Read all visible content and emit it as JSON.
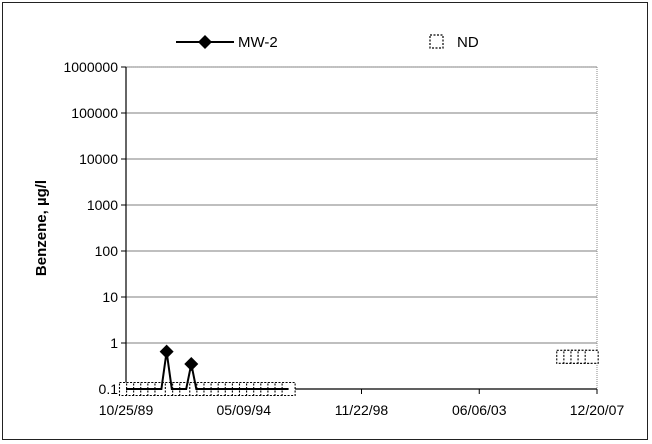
{
  "chart_data": {
    "type": "line",
    "y_scale": "log",
    "ylim": [
      0.1,
      1000000
    ],
    "y_ticks": [
      "0.1",
      "1",
      "10",
      "100",
      "1000",
      "10000",
      "100000",
      "1000000"
    ],
    "xlim": [
      "1989-10-25",
      "2007-12-20"
    ],
    "x_ticks": [
      "10/25/89",
      "05/09/94",
      "11/22/98",
      "06/06/03",
      "12/20/07"
    ],
    "ylabel": "Benzene, µg/l",
    "xlabel": "",
    "grid": "horizontal",
    "legend_position": "top",
    "series": [
      {
        "name": "MW-2",
        "marker": "diamond",
        "color": "#000000",
        "points": [
          {
            "x": "1989-10-25",
            "y": 0.1
          },
          {
            "x": "1990-02-02",
            "y": 0.1
          },
          {
            "x": "1990-05-12",
            "y": 0.1
          },
          {
            "x": "1990-08-20",
            "y": 0.1
          },
          {
            "x": "1990-11-28",
            "y": 0.1
          },
          {
            "x": "1991-03-08",
            "y": 0.1
          },
          {
            "x": "1991-05-20",
            "y": 0.65
          },
          {
            "x": "1991-08-01",
            "y": 0.1
          },
          {
            "x": "1991-11-12",
            "y": 0.1
          },
          {
            "x": "1992-02-20",
            "y": 0.1
          },
          {
            "x": "1992-05-01",
            "y": 0.35
          },
          {
            "x": "1992-07-10",
            "y": 0.1
          },
          {
            "x": "1992-10-18",
            "y": 0.1
          },
          {
            "x": "1993-01-26",
            "y": 0.1
          },
          {
            "x": "1993-05-06",
            "y": 0.1
          },
          {
            "x": "1993-08-14",
            "y": 0.1
          },
          {
            "x": "1993-11-22",
            "y": 0.1
          },
          {
            "x": "1994-03-02",
            "y": 0.1
          },
          {
            "x": "1994-06-10",
            "y": 0.1
          },
          {
            "x": "1994-09-18",
            "y": 0.1
          },
          {
            "x": "1994-12-27",
            "y": 0.1
          },
          {
            "x": "1995-04-06",
            "y": 0.1
          },
          {
            "x": "1995-07-15",
            "y": 0.1
          },
          {
            "x": "1995-10-23",
            "y": 0.1
          },
          {
            "x": "1996-01-31",
            "y": 0.1
          }
        ]
      },
      {
        "name": "ND",
        "marker": "square-open",
        "color": "#000000",
        "points": [
          {
            "x": "1989-10-25",
            "y": 0.1
          },
          {
            "x": "1990-02-02",
            "y": 0.1
          },
          {
            "x": "1990-05-12",
            "y": 0.1
          },
          {
            "x": "1990-08-20",
            "y": 0.1
          },
          {
            "x": "1990-11-28",
            "y": 0.1
          },
          {
            "x": "1991-03-08",
            "y": 0.1
          },
          {
            "x": "1991-08-01",
            "y": 0.1
          },
          {
            "x": "1991-11-12",
            "y": 0.1
          },
          {
            "x": "1992-02-20",
            "y": 0.1
          },
          {
            "x": "1992-07-10",
            "y": 0.1
          },
          {
            "x": "1992-10-18",
            "y": 0.1
          },
          {
            "x": "1993-01-26",
            "y": 0.1
          },
          {
            "x": "1993-05-06",
            "y": 0.1
          },
          {
            "x": "1993-08-14",
            "y": 0.1
          },
          {
            "x": "1993-11-22",
            "y": 0.1
          },
          {
            "x": "1994-03-02",
            "y": 0.1
          },
          {
            "x": "1994-06-10",
            "y": 0.1
          },
          {
            "x": "1994-09-18",
            "y": 0.1
          },
          {
            "x": "1994-12-27",
            "y": 0.1
          },
          {
            "x": "1995-04-06",
            "y": 0.1
          },
          {
            "x": "1995-07-15",
            "y": 0.1
          },
          {
            "x": "1995-10-23",
            "y": 0.1
          },
          {
            "x": "1996-01-31",
            "y": 0.1
          },
          {
            "x": "2006-09-01",
            "y": 0.5
          },
          {
            "x": "2006-12-10",
            "y": 0.5
          },
          {
            "x": "2007-03-20",
            "y": 0.5
          },
          {
            "x": "2007-06-28",
            "y": 0.5
          },
          {
            "x": "2007-10-06",
            "y": 0.5
          }
        ]
      }
    ]
  }
}
